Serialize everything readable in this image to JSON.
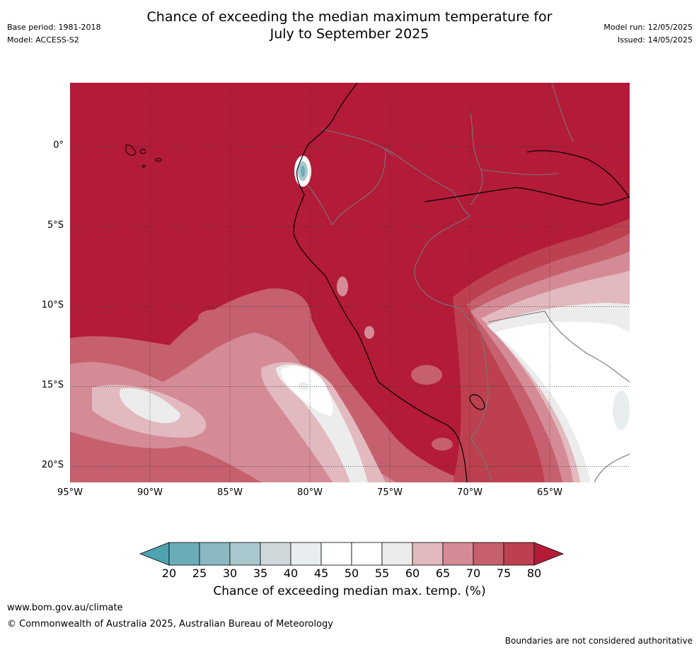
{
  "header": {
    "title_line1": "Chance of exceeding the median maximum temperature for",
    "title_line2": "July to September 2025",
    "base_period": "Base period: 1981-2018",
    "model": "Model: ACCESS-S2",
    "model_run": "Model run: 12/05/2025",
    "issued": "Issued: 14/05/2025"
  },
  "map": {
    "lat_ticks": [
      "0°",
      "5°S",
      "10°S",
      "15°S",
      "20°S"
    ],
    "lon_ticks": [
      "95°W",
      "90°W",
      "85°W",
      "80°W",
      "75°W",
      "70°W",
      "65°W"
    ],
    "lat_values": [
      0,
      -5,
      -10,
      -15,
      -20
    ],
    "lon_values": [
      -95,
      -90,
      -85,
      -80,
      -75,
      -70,
      -65
    ],
    "extent": {
      "lon_min": -95,
      "lon_max": -60,
      "lat_min": -21,
      "lat_max": 4
    },
    "background_color": "#b31b38"
  },
  "colorbar": {
    "labels": [
      "20",
      "25",
      "30",
      "35",
      "40",
      "45",
      "50",
      "55",
      "60",
      "65",
      "70",
      "75",
      "80"
    ],
    "under_color": "#4fa3b1",
    "over_color": "#b31b38",
    "colors": [
      "#6aadb9",
      "#8ab8c3",
      "#a9c8cd",
      "#cfd8db",
      "#e8eef0",
      "#ffffff",
      "#ffffff",
      "#ececec",
      "#e2b9bf",
      "#d48b95",
      "#c6606e",
      "#bc4050"
    ],
    "title": "Chance of exceeding median max. temp. (%)"
  },
  "footer": {
    "website": "www.bom.gov.au/climate",
    "copyright": "© Commonwealth of Australia 2025, Australian Bureau of Meteorology",
    "disclaimer": "Boundaries are not considered authoritative"
  }
}
